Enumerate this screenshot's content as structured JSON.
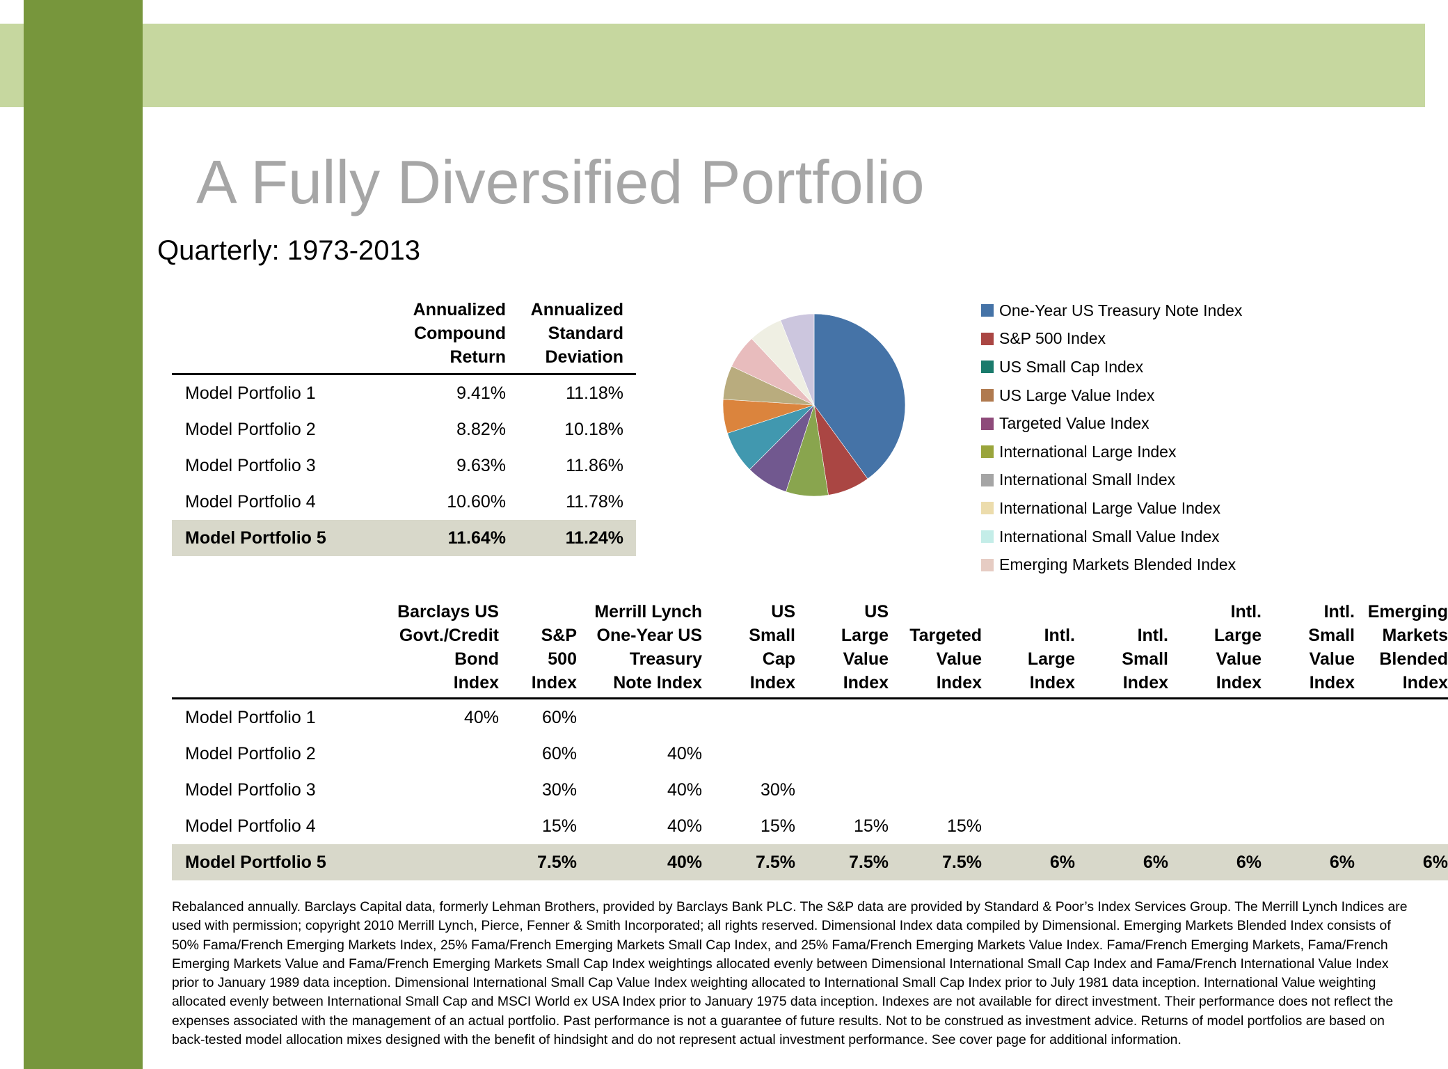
{
  "title": "A Fully Diversified Portfolio",
  "subtitle": "Quarterly: 1973-2013",
  "summary_table": {
    "headers": [
      "",
      [
        "Annualized",
        "Compound",
        "Return"
      ],
      [
        "Annualized",
        "Standard",
        "Deviation"
      ]
    ],
    "rows": [
      [
        "Model Portfolio 1",
        "9.41%",
        "11.18%"
      ],
      [
        "Model Portfolio 2",
        "8.82%",
        "10.18%"
      ],
      [
        "Model Portfolio 3",
        "9.63%",
        "11.86%"
      ],
      [
        "Model Portfolio 4",
        "10.60%",
        "11.78%"
      ],
      [
        "Model Portfolio 5",
        "11.64%",
        "11.24%"
      ]
    ],
    "highlighted_row": 4
  },
  "allocation_table": {
    "headers": [
      "",
      [
        "Barclays US",
        "Govt./Credit",
        "Bond",
        "Index"
      ],
      [
        "S&P",
        "500",
        "Index"
      ],
      [
        "Merrill Lynch",
        "One-Year US",
        "Treasury",
        "Note Index"
      ],
      [
        "US",
        "Small",
        "Cap",
        "Index"
      ],
      [
        "US",
        "Large",
        "Value",
        "Index"
      ],
      [
        "Targeted",
        "Value",
        "Index"
      ],
      [
        "Intl.",
        "Large",
        "Index"
      ],
      [
        "Intl.",
        "Small",
        "Index"
      ],
      [
        "Intl.",
        "Large",
        "Value",
        "Index"
      ],
      [
        "Intl.",
        "Small",
        "Value",
        "Index"
      ],
      [
        "Emerging",
        "Markets",
        "Blended",
        "Index"
      ]
    ],
    "rows": [
      [
        "Model Portfolio 1",
        "40%",
        "60%",
        "",
        "",
        "",
        "",
        "",
        "",
        "",
        "",
        ""
      ],
      [
        "Model Portfolio 2",
        "",
        "60%",
        "40%",
        "",
        "",
        "",
        "",
        "",
        "",
        "",
        ""
      ],
      [
        "Model Portfolio 3",
        "",
        "30%",
        "40%",
        "30%",
        "",
        "",
        "",
        "",
        "",
        "",
        ""
      ],
      [
        "Model Portfolio 4",
        "",
        "15%",
        "40%",
        "15%",
        "15%",
        "15%",
        "",
        "",
        "",
        "",
        ""
      ],
      [
        "Model Portfolio 5",
        "",
        "7.5%",
        "40%",
        "7.5%",
        "7.5%",
        "7.5%",
        "6%",
        "6%",
        "6%",
        "6%",
        "6%"
      ]
    ],
    "highlighted_row": 4
  },
  "chart_data": {
    "type": "pie",
    "legend_position": "right",
    "slices": [
      {
        "name": "One-Year US Treasury Note Index",
        "value": 40,
        "color": "#4573a7"
      },
      {
        "name": "S&P 500 Index",
        "value": 7.5,
        "color": "#aa4643"
      },
      {
        "name": "US Small Cap Index",
        "value": 7.5,
        "color": "#1a7b6c"
      },
      {
        "name": "US Large Value Index",
        "value": 7.5,
        "color": "#b07a4f"
      },
      {
        "name": "Targeted Value Index",
        "value": 7.5,
        "color": "#8e4a7a"
      },
      {
        "name": "International Large Index",
        "value": 6,
        "color": "#9aa53c"
      },
      {
        "name": "International Small Index",
        "value": 6,
        "color": "#a5a5a5"
      },
      {
        "name": "International Large Value Index",
        "value": 6,
        "color": "#ecdcac"
      },
      {
        "name": "International Small Value Index",
        "value": 6,
        "color": "#c4ede8"
      },
      {
        "name": "Emerging Markets Blended Index",
        "value": 6,
        "color": "#e6ccc3"
      }
    ],
    "drawn_colors": [
      "#4573a7",
      "#aa4643",
      "#89a54e",
      "#71588f",
      "#4198af",
      "#db843d",
      "#b9ac7e",
      "#e8bcbd",
      "#efefe3",
      "#ccc6de"
    ]
  },
  "footnote": "Rebalanced annually. Barclays Capital data, formerly Lehman Brothers, provided by Barclays Bank PLC. The S&P data are provided by Standard & Poor’s Index Services Group. The Merrill Lynch Indices are used with permission; copyright 2010 Merrill Lynch, Pierce, Fenner & Smith Incorporated; all rights reserved. Dimensional Index data compiled by Dimensional. Emerging Markets Blended Index consists of 50% Fama/French Emerging Markets Index, 25% Fama/French Emerging Markets Small Cap Index, and 25% Fama/French Emerging Markets Value Index. Fama/French Emerging Markets, Fama/French Emerging Markets Value and Fama/French Emerging Markets Small Cap Index weightings allocated evenly between Dimensional International Small Cap Index and Fama/French International Value Index prior to January 1989 data inception. Dimensional International Small Cap Value Index weighting allocated to International Small Cap Index prior to July 1981 data inception. International Value weighting allocated evenly between International Small Cap and MSCI World ex USA Index prior to January 1975 data inception. Indexes are not available for direct investment. Their performance does not reflect the expenses associated with the management of an actual portfolio. Past performance is not a guarantee of future results. Not to be construed as investment advice. Returns of model portfolios are based on back-tested model allocation mixes designed with the benefit of hindsight and do not represent actual investment performance. See cover page for additional information."
}
